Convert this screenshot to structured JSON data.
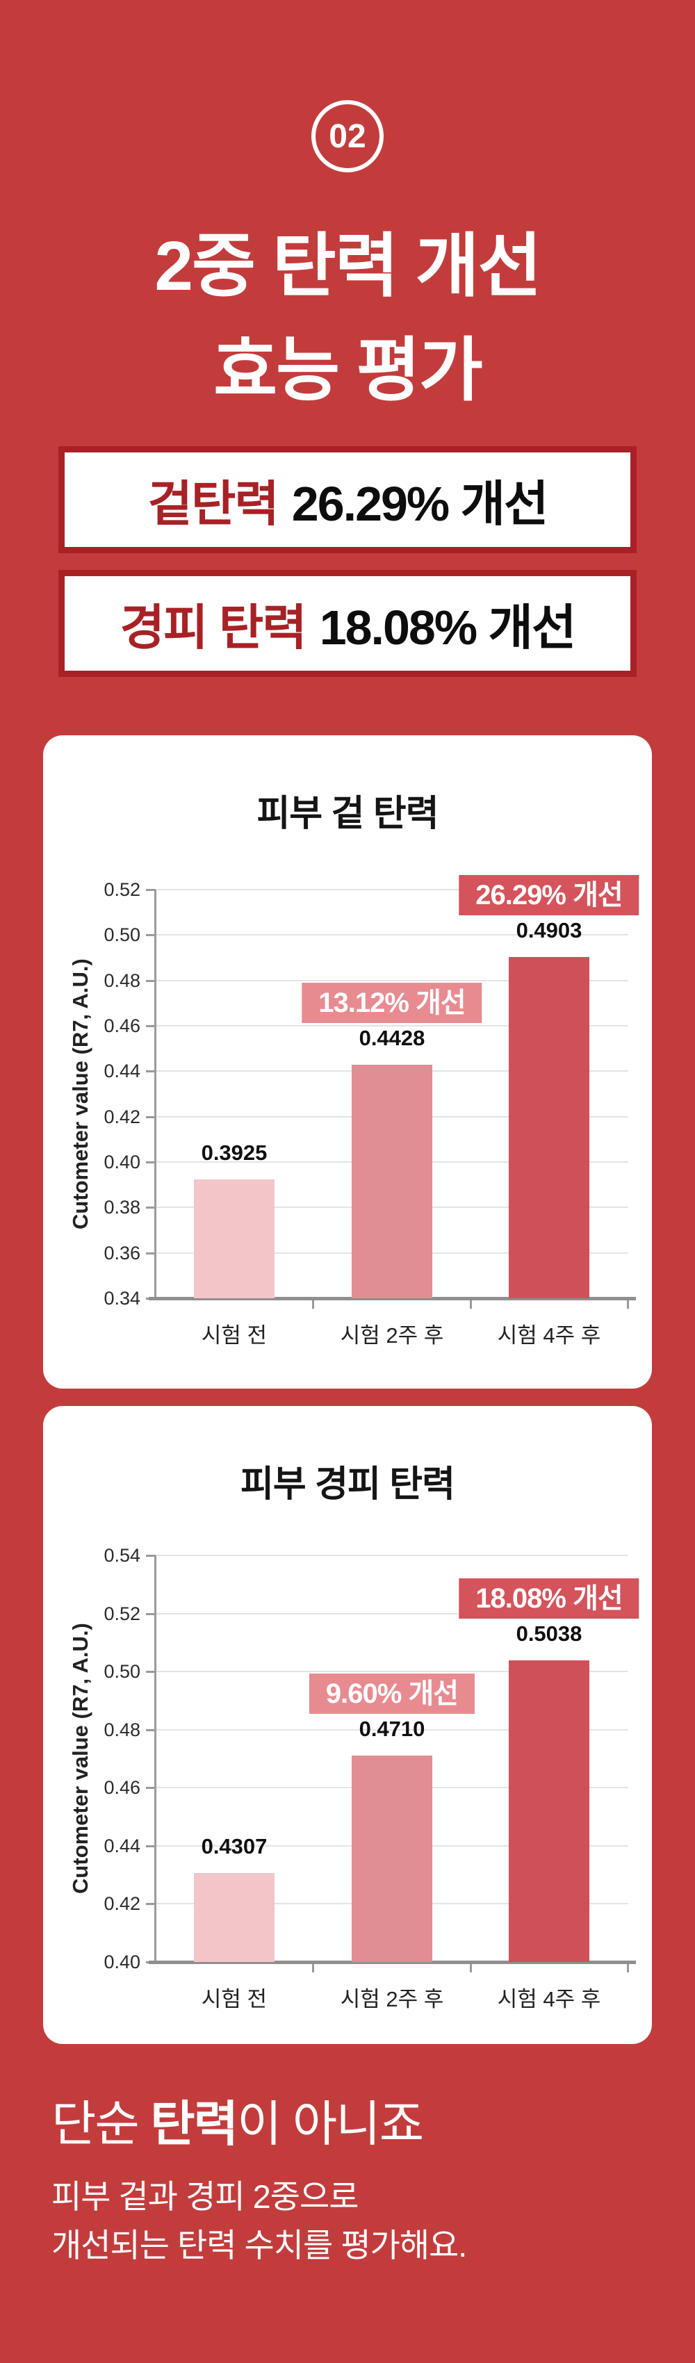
{
  "colors": {
    "background": "#C33C3C",
    "dark_red": "#A82125",
    "badge_strong": "#D5535B",
    "badge_light": "#E88B90",
    "card_bg": "#FFFFFF",
    "grid": "#E4E4E6",
    "axis": "#9A9A9A"
  },
  "header": {
    "badge_number": "02",
    "title_line1": "2중 탄력 개선",
    "title_line2": "효능 평가"
  },
  "banners": [
    {
      "highlight": "겉탄력",
      "value_text": "26.29% 개선"
    },
    {
      "highlight": "경피 탄력",
      "value_text": "18.08% 개선"
    }
  ],
  "chart_data": [
    {
      "type": "bar",
      "title": "피부 겉 탄력",
      "ylabel": "Cutometer value (R7, A.U.)",
      "ylim": [
        0.34,
        0.52
      ],
      "ytick_step": 0.02,
      "ytick_labels": [
        "0.52",
        "0.50",
        "0.48",
        "0.46",
        "0.44",
        "0.42",
        "0.40",
        "0.38",
        "0.36",
        "0.34"
      ],
      "categories": [
        "시험 전",
        "시험 2주 후",
        "시험 4주 후"
      ],
      "values": [
        0.3925,
        0.4428,
        0.4903
      ],
      "value_labels": [
        "0.3925",
        "0.4428",
        "0.4903"
      ],
      "bar_colors": [
        "#F2C5C9",
        "#E08E93",
        "#D0505A"
      ],
      "grid": true,
      "annotations": [
        {
          "bar_index": 1,
          "text": "13.12% 개선",
          "color_role": "badge_light"
        },
        {
          "bar_index": 2,
          "text": "26.29% 개선",
          "color_role": "badge_strong"
        }
      ]
    },
    {
      "type": "bar",
      "title": "피부 경피 탄력",
      "ylabel": "Cutometer value (R7, A.U.)",
      "ylim": [
        0.4,
        0.54
      ],
      "ytick_step": 0.02,
      "ytick_labels": [
        "0.54",
        "0.52",
        "0.50",
        "0.48",
        "0.46",
        "0.44",
        "0.42",
        "0.40"
      ],
      "categories": [
        "시험 전",
        "시험 2주 후",
        "시험 4주 후"
      ],
      "values": [
        0.4307,
        0.471,
        0.5038
      ],
      "value_labels": [
        "0.4307",
        "0.4710",
        "0.5038"
      ],
      "bar_colors": [
        "#F2C5C9",
        "#E08E93",
        "#D0505A"
      ],
      "grid": true,
      "annotations": [
        {
          "bar_index": 1,
          "text": "9.60% 개선",
          "color_role": "badge_light"
        },
        {
          "bar_index": 2,
          "text": "18.08% 개선",
          "color_role": "badge_strong"
        }
      ]
    }
  ],
  "footer": {
    "heading_pre": "단순 ",
    "heading_bold": "탄력",
    "heading_post": "이 아니죠",
    "body_line1": "피부 겉과 경피 2중으로",
    "body_line2": "개선되는 탄력 수치를 평가해요."
  }
}
